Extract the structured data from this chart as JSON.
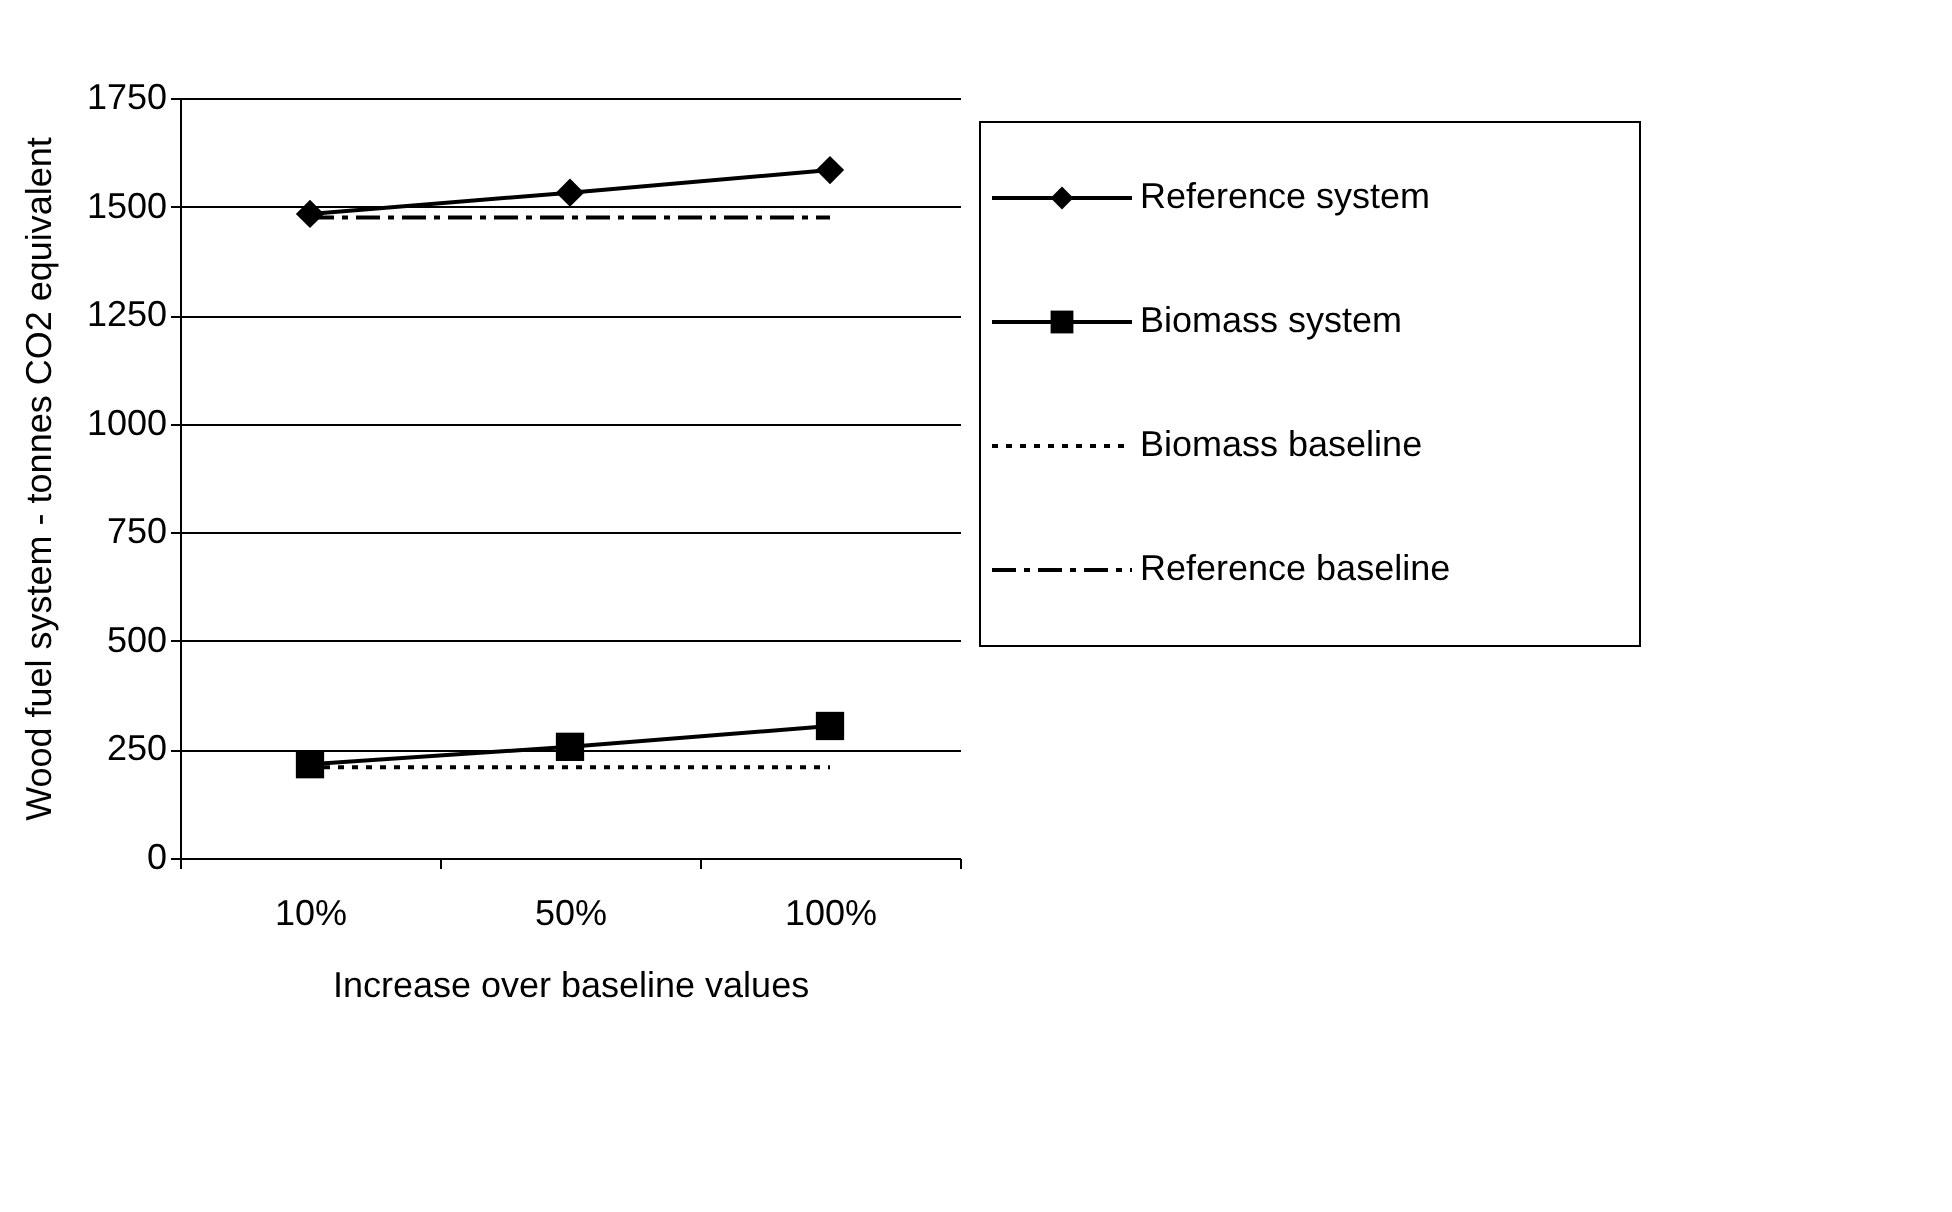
{
  "chart_data": {
    "type": "line",
    "xlabel": "Increase over baseline values",
    "ylabel": "Wood fuel system - tonnes CO2 equivalent",
    "categories": [
      "10%",
      "50%",
      "100%"
    ],
    "series": [
      {
        "name": "Reference system",
        "color": "#000000",
        "marker": "diamond",
        "line_style": "solid",
        "values": [
          1483,
          1532,
          1584
        ]
      },
      {
        "name": "Biomass system",
        "color": "#000000",
        "marker": "square",
        "line_style": "solid",
        "values": [
          216,
          256,
          304
        ]
      },
      {
        "name": "Biomass baseline",
        "color": "#000000",
        "marker": "none",
        "line_style": "dotted",
        "values": [
          209,
          209,
          209
        ]
      },
      {
        "name": "Reference baseline",
        "color": "#000000",
        "marker": "none",
        "line_style": "dashdot",
        "values": [
          1475,
          1475,
          1475
        ]
      }
    ],
    "ylim": [
      0,
      1750
    ],
    "yticks": [
      0,
      250,
      500,
      750,
      1000,
      1250,
      1500,
      1750
    ],
    "grid": "y",
    "legend": "right"
  }
}
